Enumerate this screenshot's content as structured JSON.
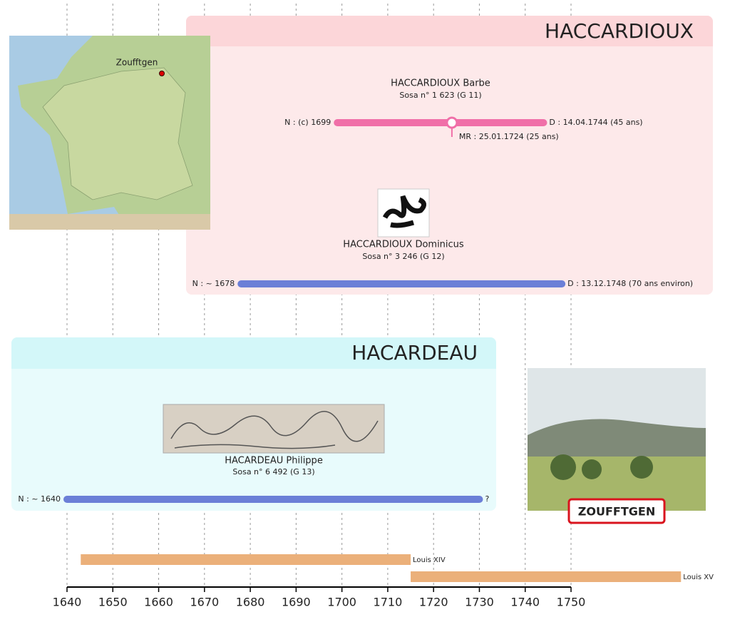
{
  "axis": {
    "xlim": [
      1640,
      1750
    ],
    "xticks": [
      1640,
      1650,
      1660,
      1670,
      1680,
      1690,
      1700,
      1710,
      1720,
      1730,
      1740,
      1750
    ]
  },
  "map": {
    "label": "Zoufftgen"
  },
  "sign": "ZOUFFTGEN",
  "families": [
    {
      "title": "HACCARDIOUX",
      "persons": [
        {
          "name": "HACCARDIOUX Barbe",
          "sosa": "Sosa n° 1 623 (G 11)",
          "birth_label": "N : (c) 1699",
          "birth": 1699,
          "death_label": "D : 14.04.1744 (45 ans)",
          "death": 1744,
          "marriage_label": "MR : 25.01.1724 (25 ans)",
          "marriage": 1724,
          "color": "#f06fa8"
        },
        {
          "name": "HACCARDIOUX Dominicus",
          "sosa": "Sosa n° 3 246 (G 12)",
          "birth_label": "N : ~ 1678",
          "birth": 1678,
          "death_label": "D : 13.12.1748 (70 ans environ)",
          "death": 1748,
          "color": "#6b7fd7"
        }
      ]
    },
    {
      "title": "HACARDEAU",
      "persons": [
        {
          "name": "HACARDEAU Philippe",
          "sosa": "Sosa n° 6 492 (G 13)",
          "birth_label": "N : ~ 1640",
          "birth": 1640,
          "death_label": "?",
          "death": null,
          "bar_end": 1730,
          "color": "#6b7fd7"
        }
      ]
    }
  ],
  "reigns": {
    "color": "#ebb07a",
    "items": [
      {
        "name": "Louis XIV",
        "start": 1643,
        "end": 1715
      },
      {
        "name": "Louis XV",
        "start": 1715,
        "end": 1774
      }
    ]
  }
}
